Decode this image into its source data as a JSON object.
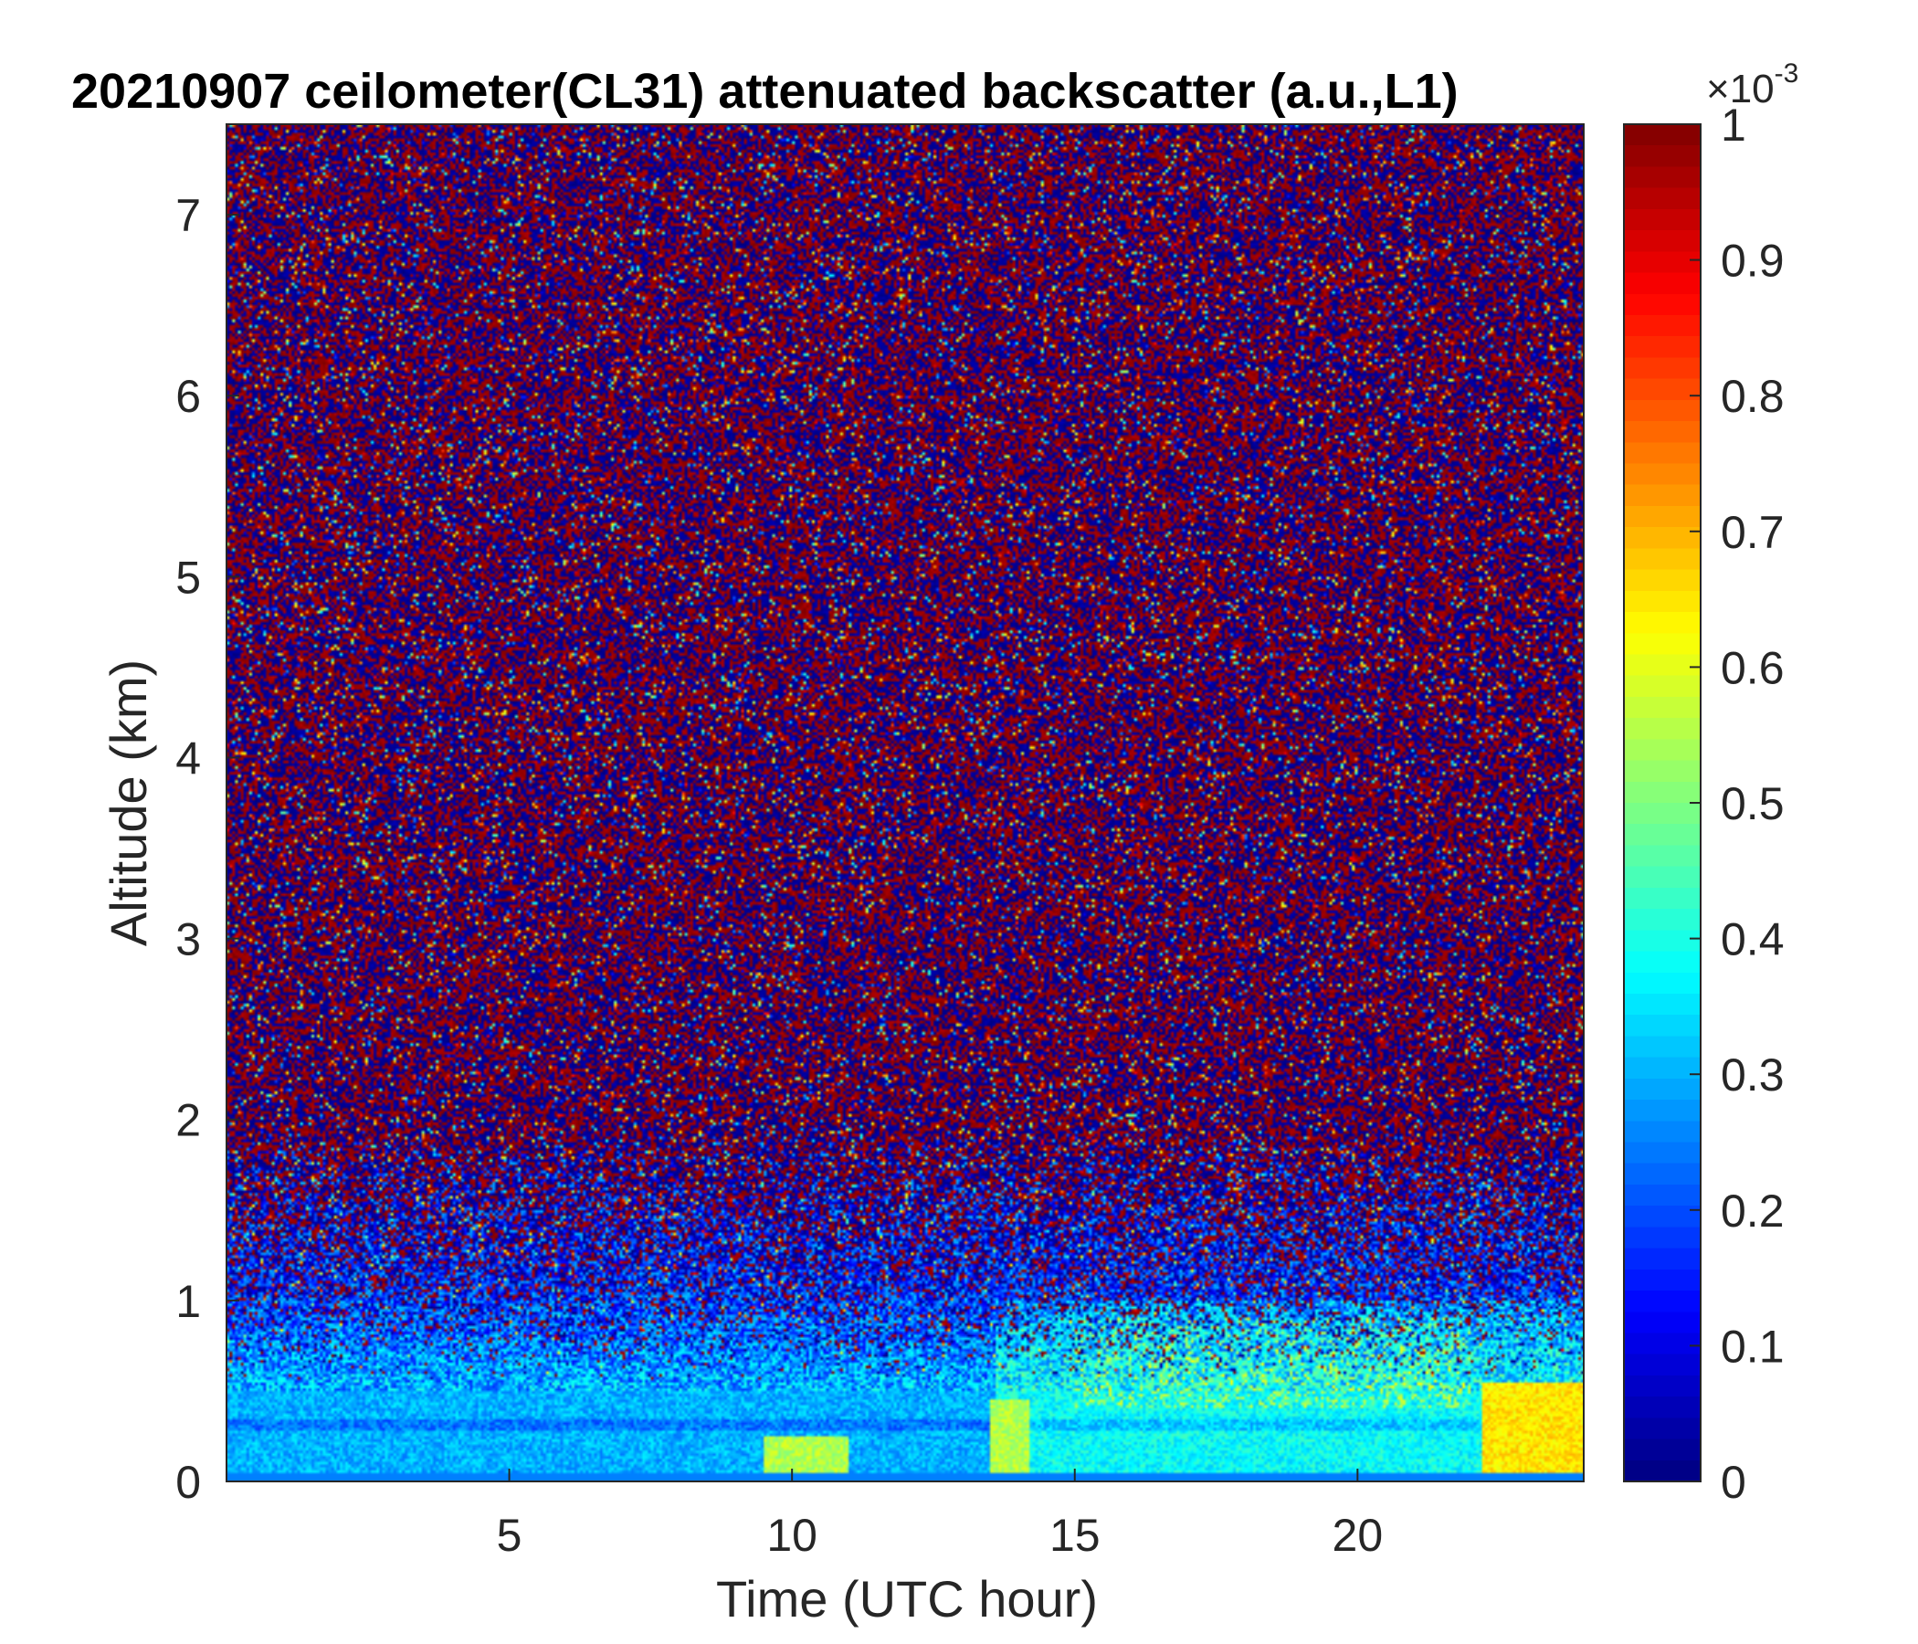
{
  "chart_data": {
    "type": "heatmap",
    "title": "20210907 ceilometer(CL31) attenuated backscatter (a.u.,L1)",
    "xlabel": "Time (UTC hour)",
    "ylabel": "Altitude (km)",
    "xlim": [
      0,
      24
    ],
    "ylim": [
      0,
      7.5
    ],
    "x_ticks": [
      5,
      10,
      15,
      20
    ],
    "y_ticks": [
      0,
      1,
      2,
      3,
      4,
      5,
      6,
      7
    ],
    "colorbar": {
      "colormap": "jet",
      "range": [
        0,
        1
      ],
      "ticks": [
        0,
        0.1,
        0.2,
        0.3,
        0.4,
        0.5,
        0.6,
        0.7,
        0.8,
        0.9,
        1
      ],
      "tick_labels": [
        "0",
        "0.1",
        "0.2",
        "0.3",
        "0.4",
        "0.5",
        "0.6",
        "0.7",
        "0.8",
        "0.9",
        "1"
      ],
      "exponent_base": "×10",
      "exponent_power": "-3"
    },
    "features": {
      "background": "noise alternating between 0 and 1 above ~1.5 km",
      "boundary_layer_top_km": 0.5,
      "low_layer_value": 0.3,
      "bright_patches": [
        {
          "x_range": [
            9.5,
            11
          ],
          "y_range": [
            0,
            0.25
          ],
          "value": 0.55
        },
        {
          "x_range": [
            13.5,
            14.2
          ],
          "y_range": [
            0,
            0.45
          ],
          "value": 0.55
        },
        {
          "x_range": [
            22.2,
            24
          ],
          "y_range": [
            0,
            0.55
          ],
          "value": 0.65
        }
      ]
    }
  }
}
